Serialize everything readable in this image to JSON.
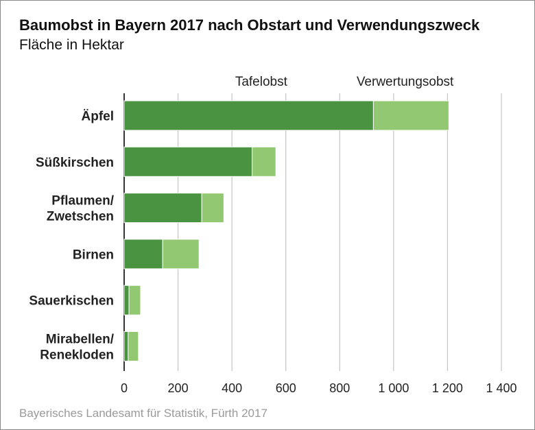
{
  "chart_data": {
    "type": "bar",
    "orientation": "horizontal",
    "stacked": true,
    "title": "Baumobst in Bayern 2017 nach Obstart und Verwendungszweck",
    "subtitle": "Fläche in Hektar",
    "categories": [
      [
        "Äpfel"
      ],
      [
        "Süßkirschen"
      ],
      [
        "Pflaumen/",
        "Zwetschen"
      ],
      [
        "Birnen"
      ],
      [
        "Sauerkischen"
      ],
      [
        "Mirabellen/",
        "Renekloden"
      ]
    ],
    "series": [
      {
        "name": "Tafelobst",
        "color": "#4a9340",
        "values": [
          925,
          475,
          288,
          143,
          18,
          15
        ]
      },
      {
        "name": "Verwertungsobst",
        "color": "#93c872",
        "values": [
          280,
          88,
          82,
          135,
          43,
          38
        ]
      }
    ],
    "xlim": [
      0,
      1400
    ],
    "xticks": [
      0,
      200,
      400,
      600,
      800,
      1000,
      1200,
      1400
    ],
    "xtick_labels": [
      "0",
      "200",
      "400",
      "600",
      "800",
      "1 000",
      "1 200",
      "1 400"
    ],
    "grid": true,
    "legend_position": "top",
    "source": "Bayerisches Landesamt für Statistik, Fürth 2017"
  }
}
